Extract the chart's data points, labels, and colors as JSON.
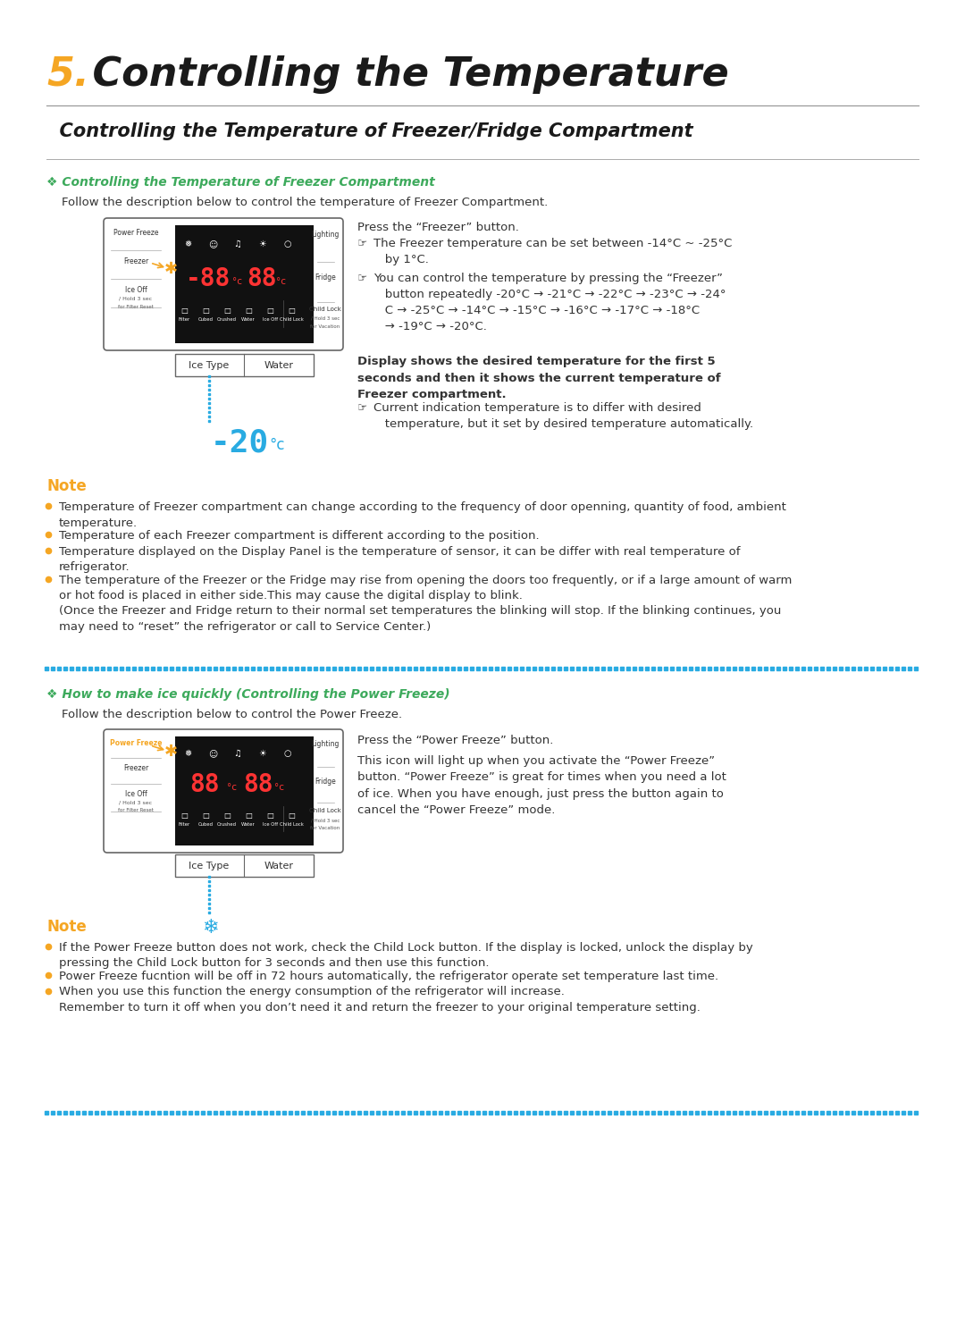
{
  "title_number": "5.",
  "title_number_color": "#F5A623",
  "title_text": " Controlling the Temperature",
  "title_fontsize": 32,
  "subtitle": "  Controlling the Temperature of Freezer/Fridge Compartment",
  "subtitle_fontsize": 15,
  "section1_title": "❖ Controlling the Temperature of Freezer Compartment",
  "section1_title_color": "#3DAA5C",
  "section1_desc": "    Follow the description below to control the temperature of Freezer Compartment.",
  "section1_press": "Press the “Freezer” button.",
  "section1_bullet1": "The Freezer temperature can be set between -14°C ~ -25°C\n   by 1°C.",
  "section1_bullet2": "You can control the temperature by pressing the “Freezer”\n   button repeatedly -20°C → -21°C → -22°C → -23°C → -24°\n   C → -25°C → -14°C → -15°C → -16°C → -17°C → -18°C\n   → -19°C → -20°C.",
  "section1_bold": "Display shows the desired temperature for the first 5\nseconds and then it shows the current temperature of\nFreezer compartment.",
  "section1_subbullet": "Current indication temperature is to differ with desired\n   temperature, but it set by desired temperature automatically.",
  "note1_title": "Note",
  "note1_title_color": "#F5A623",
  "note1_bullets": [
    "Temperature of Freezer compartment can change according to the frequency of door openning, quantity of food, ambient\ntemperature.",
    "Temperature of each Freezer compartment is different according to the position.",
    "Temperature displayed on the Display Panel is the temperature of sensor, it can be differ with real temperature of\nrefrigerator.",
    "The temperature of the Freezer or the Fridge may rise from opening the doors too frequently, or if a large amount of warm\nor hot food is placed in either side.This may cause the digital display to blink.\n(Once the Freezer and Fridge return to their normal set temperatures the blinking will stop. If the blinking continues, you\nmay need to “reset” the refrigerator or call to Service Center.)"
  ],
  "section2_title": "❖ How to make ice quickly (Controlling the Power Freeze)",
  "section2_title_color": "#3DAA5C",
  "section2_desc": "    Follow the description below to control the Power Freeze.",
  "section2_press": "Press the “Power Freeze” button.",
  "section2_body": "This icon will light up when you activate the “Power Freeze”\nbutton. “Power Freeze” is great for times when you need a lot\nof ice. When you have enough, just press the button again to\ncancel the “Power Freeze” mode.",
  "note2_title": "Note",
  "note2_title_color": "#F5A623",
  "note2_bullets": [
    "If the Power Freeze button does not work, check the Child Lock button. If the display is locked, unlock the display by\npressing the Child Lock button for 3 seconds and then use this function.",
    "Power Freeze fucntion will be off in 72 hours automatically, the refrigerator operate set temperature last time.",
    "When you use this function the energy consumption of the refrigerator will increase.\nRemember to turn it off when you don’t need it and return the freezer to your original temperature setting."
  ],
  "bg_color": "#FFFFFF",
  "text_color": "#333333",
  "dark_text": "#1a1a1a",
  "dot_line_color": "#29ABE2",
  "body_fontsize": 9.5,
  "note_fontsize": 9.5,
  "small_fontsize": 6
}
